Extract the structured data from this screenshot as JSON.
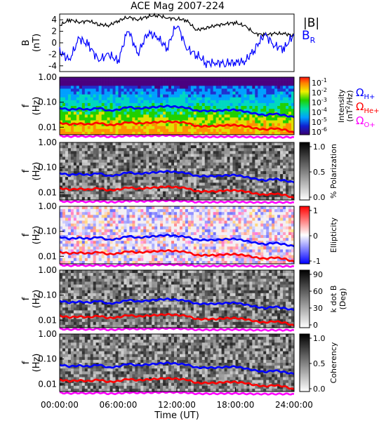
{
  "title": "ACE Mag 2007-224",
  "xlabel": "Time (UT)",
  "xticks": [
    "00:00:00",
    "06:00:00",
    "12:00:00",
    "18:00:00",
    "24:00:00"
  ],
  "colors": {
    "B_total": "#000000",
    "B_R": "#0000ff",
    "H": "#0000ff",
    "He": "#ff0000",
    "O": "#ff00ff"
  },
  "legend": {
    "B_total": "|B|",
    "B_R_main": "B",
    "B_R_sub": "R",
    "H_main": "Ω",
    "H_sub": "H+",
    "He_main": "Ω",
    "He_sub": "He+",
    "O_main": "Ω",
    "O_sub": "O+"
  },
  "panels": {
    "mag": {
      "ylabel": "B",
      "yunit": "(nT)",
      "yticks": [
        "4",
        "2",
        "0",
        "-2",
        "-4"
      ]
    },
    "freq_ylabel": "f",
    "freq_yunit": "(Hz)",
    "freq_yticks": [
      "1.00",
      "0.10",
      "0.01"
    ],
    "intensity": {
      "cbar_ticks_main": [
        "10",
        "10",
        "10",
        "10",
        "10",
        "10"
      ],
      "cbar_ticks_exp": [
        "-1",
        "-2",
        "-3",
        "-4",
        "-5",
        "-6"
      ],
      "cbar_label_main": "Intensity",
      "cbar_label_unit_a": "(nT",
      "cbar_label_unit_sup": "2",
      "cbar_label_unit_b": "/Hz)"
    },
    "polarization": {
      "cbar_ticks": [
        "1.0",
        "0.5",
        "0.0"
      ],
      "cbar_label": "% Polarization"
    },
    "ellipticity": {
      "cbar_ticks": [
        "1",
        "0",
        "-1"
      ],
      "cbar_label": "Ellipticity"
    },
    "kdotb": {
      "cbar_ticks": [
        "90",
        "60",
        "30",
        "0"
      ],
      "cbar_label_a": "k dot B",
      "cbar_label_b": "(Deg)"
    },
    "coherency": {
      "cbar_ticks": [
        "1.0",
        "0.5",
        "0.0"
      ],
      "cbar_label": "Coherency"
    }
  },
  "chart_data": [
    {
      "type": "line",
      "title": "ACE Mag 2007-224",
      "ylabel": "B (nT)",
      "xlabel": "Time (UT)",
      "x_hours": [
        0,
        1,
        2,
        3,
        4,
        5,
        6,
        7,
        8,
        9,
        10,
        11,
        12,
        13,
        14,
        15,
        16,
        17,
        18,
        19,
        20,
        21,
        22,
        23,
        24
      ],
      "ylim": [
        -5,
        5
      ],
      "series": [
        {
          "name": "|B|",
          "values": [
            3.0,
            4.0,
            3.6,
            3.8,
            3.2,
            3.0,
            3.8,
            4.5,
            4.0,
            4.6,
            4.8,
            4.3,
            4.2,
            3.9,
            2.2,
            2.6,
            3.0,
            3.3,
            3.5,
            2.9,
            1.6,
            1.4,
            1.6,
            1.6,
            1.2
          ]
        },
        {
          "name": "B_R",
          "values": [
            -1.5,
            -3.0,
            0.8,
            -0.5,
            -3.0,
            -2.0,
            -3.2,
            2.4,
            -2.0,
            1.8,
            1.0,
            -1.0,
            3.4,
            -1.0,
            -2.0,
            -3.5,
            -3.5,
            -3.5,
            -3.4,
            -3.2,
            -1.0,
            1.5,
            -0.5,
            -1.0,
            1.5
          ]
        }
      ]
    },
    {
      "type": "heatmap",
      "ylabel": "f (Hz)",
      "ylim": [
        0.005,
        1.0
      ],
      "yscale": "log",
      "panels": [
        "Intensity",
        "% Polarization",
        "Ellipticity",
        "k dot B",
        "Coherency"
      ],
      "series": [
        {
          "name": "Ω H+",
          "values": [
            0.06,
            0.05,
            0.055,
            0.05,
            0.06,
            0.045,
            0.05,
            0.065,
            0.055,
            0.06,
            0.065,
            0.07,
            0.065,
            0.06,
            0.045,
            0.045,
            0.045,
            0.048,
            0.05,
            0.042,
            0.035,
            0.03,
            0.035,
            0.03,
            0.025
          ]
        },
        {
          "name": "Ω He+",
          "values": [
            0.015,
            0.013,
            0.014,
            0.013,
            0.015,
            0.012,
            0.013,
            0.016,
            0.014,
            0.015,
            0.016,
            0.017,
            0.016,
            0.015,
            0.011,
            0.011,
            0.011,
            0.012,
            0.012,
            0.011,
            0.009,
            0.008,
            0.009,
            0.008,
            0.006
          ]
        },
        {
          "name": "Ω O+",
          "values": [
            0.0045,
            0.0042,
            0.0044,
            0.0042,
            0.0045,
            0.0041,
            0.0042,
            0.0046,
            0.0044,
            0.0045,
            0.0046,
            0.0047,
            0.0046,
            0.0045,
            0.0041,
            0.0041,
            0.0041,
            0.0042,
            0.0042,
            0.0041,
            0.004,
            0.004,
            0.004,
            0.004,
            0.004
          ]
        }
      ]
    }
  ]
}
